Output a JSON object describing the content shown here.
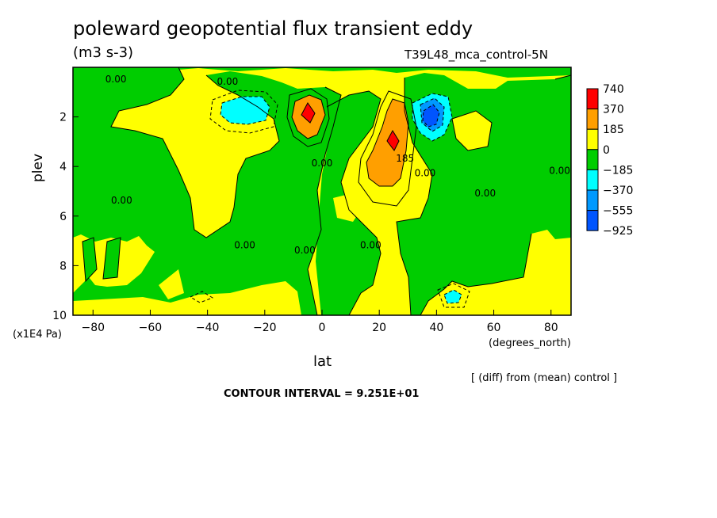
{
  "header": {
    "title": "poleward geopotential flux transient eddy",
    "units": "(m3 s-3)",
    "experiment": "T39L48_mca_control-5N"
  },
  "footer": {
    "diff_note": "[ (diff) from (mean) control ]",
    "contour_interval": "CONTOUR INTERVAL = 9.251E+01"
  },
  "chart_data": {
    "type": "heatmap",
    "title": "poleward geopotential flux transient eddy",
    "units": "(m3 s-3)",
    "xlabel": "lat",
    "xunit": "(degrees_north)",
    "ylabel": "plev",
    "yunit": "(x1E4 Pa)",
    "xlim": [
      -87,
      87
    ],
    "ylim": [
      10,
      0
    ],
    "xticks": [
      -80,
      -60,
      -40,
      -20,
      0,
      20,
      40,
      60,
      80
    ],
    "yticks": [
      2,
      4,
      6,
      8,
      10
    ],
    "colorbar": {
      "levels": [
        "740",
        "370",
        "185",
        "0",
        "-185",
        "-370",
        "-555",
        "-925"
      ],
      "colors": [
        "#ff0000",
        "#ff9f00",
        "#ffff00",
        "#00cd00",
        "#00ffff",
        "#0099ff",
        "#0055ff"
      ]
    },
    "contour_labels": [
      {
        "text": "0.00",
        "lat": -72,
        "p": 0.6
      },
      {
        "text": "0.00",
        "lat": -33,
        "p": 0.7
      },
      {
        "text": "0.00",
        "lat": -70,
        "p": 5.5
      },
      {
        "text": "0.00",
        "lat": -27,
        "p": 7.3
      },
      {
        "text": "0.00",
        "lat": -6,
        "p": 7.5
      },
      {
        "text": "0.00",
        "lat": 0,
        "p": 4.0
      },
      {
        "text": "0.00",
        "lat": 17,
        "p": 7.3
      },
      {
        "text": "185",
        "lat": 29,
        "p": 3.8
      },
      {
        "text": "0.00",
        "lat": 36,
        "p": 4.4
      },
      {
        "text": "0.00",
        "lat": 57,
        "p": 5.2
      },
      {
        "text": "0.00",
        "lat": 83,
        "p": 4.3
      }
    ],
    "features": [
      {
        "name": "red maximum",
        "lat": -4,
        "p": 2.0,
        "value": 740
      },
      {
        "name": "red maximum",
        "lat": 25,
        "p": 3.1,
        "value": 740
      },
      {
        "name": "blue minimum",
        "lat": 38,
        "p": 2.0,
        "value": -925
      },
      {
        "name": "cyan minimum",
        "lat": -30,
        "p": 1.9,
        "value": -370
      },
      {
        "name": "cyan minimum",
        "lat": 45,
        "p": 9.2,
        "value": -370
      }
    ]
  }
}
